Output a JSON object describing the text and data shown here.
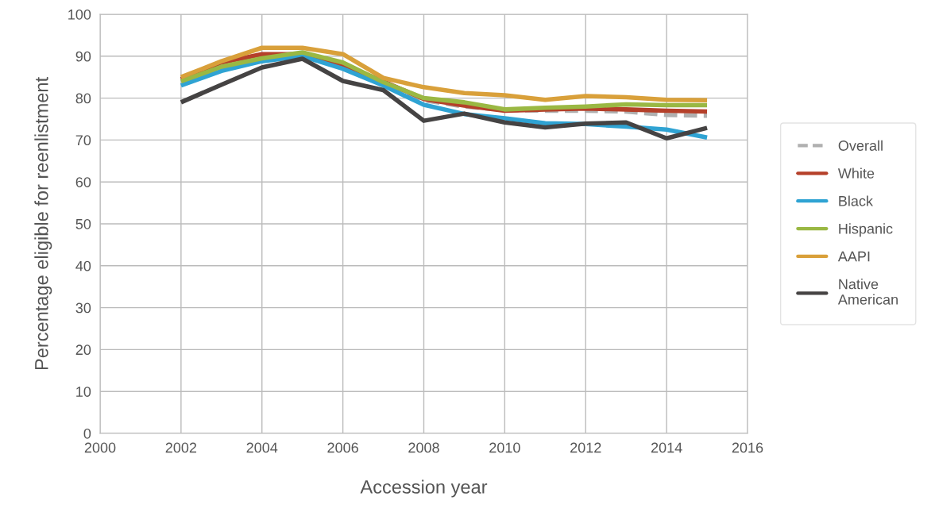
{
  "chart_data": {
    "type": "line",
    "xlabel": "Accession year",
    "ylabel": "Percentage eligible for reenlistment",
    "x": [
      2002,
      2003,
      2004,
      2005,
      2006,
      2007,
      2008,
      2009,
      2010,
      2011,
      2012,
      2013,
      2014,
      2015
    ],
    "series": [
      {
        "name": "Overall",
        "color": "#b0b0b0",
        "line_style": "dashed",
        "values": [
          84,
          null,
          90,
          90.5,
          88,
          83.5,
          79.5,
          78,
          77.2,
          77,
          77,
          76.8,
          76,
          75.8
        ]
      },
      {
        "name": "White",
        "color": "#b5402a",
        "values": [
          84.5,
          88.5,
          90.5,
          90.5,
          88,
          84,
          79.8,
          78.2,
          77,
          77.3,
          77.5,
          77.3,
          77,
          76.8
        ]
      },
      {
        "name": "Black",
        "color": "#2fa3d3",
        "values": [
          83,
          86.5,
          88.8,
          90,
          87,
          83,
          78.4,
          76.2,
          75.2,
          74,
          73.8,
          73.2,
          72.5,
          70.6
        ]
      },
      {
        "name": "Hispanic",
        "color": "#9ab843",
        "values": [
          84,
          87.5,
          89.5,
          90.9,
          88.5,
          83.8,
          80,
          79,
          77.3,
          77.7,
          78,
          78.5,
          78.3,
          78.3
        ]
      },
      {
        "name": "AAPI",
        "color": "#d9a03a",
        "values": [
          85,
          88.8,
          92,
          92,
          90.5,
          84.8,
          82.6,
          81.2,
          80.7,
          79.6,
          80.5,
          80.2,
          79.6,
          79.5
        ]
      },
      {
        "name": "Native\nAmerican",
        "color": "#454343",
        "values": [
          79,
          83.2,
          87.3,
          89.4,
          84.1,
          81.9,
          74.6,
          76.3,
          74.2,
          73,
          73.9,
          74.2,
          70.4,
          72.9
        ]
      }
    ],
    "xlim": [
      2000,
      2016
    ],
    "xticks": [
      2000,
      2002,
      2004,
      2006,
      2008,
      2010,
      2012,
      2014,
      2016
    ],
    "ylim": [
      0,
      100
    ],
    "yticks": [
      0,
      10,
      20,
      30,
      40,
      50,
      60,
      70,
      80,
      90,
      100
    ],
    "grid": true,
    "legend": "right",
    "marker": "none",
    "line_style": "solid"
  }
}
